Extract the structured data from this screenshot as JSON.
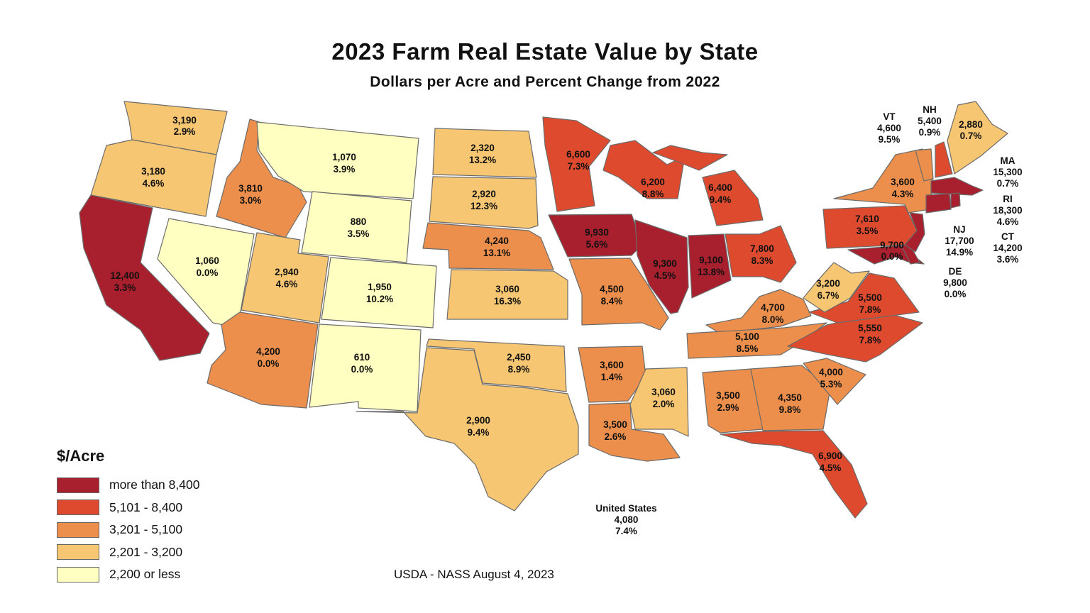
{
  "title": "2023 Farm Real Estate Value by State",
  "subtitle": "Dollars per Acre and Percent Change from 2022",
  "colors": {
    "c1": "#a81f2e",
    "c2": "#de4a2e",
    "c3": "#ec8f4c",
    "c4": "#f6c673",
    "c5": "#feffc0"
  },
  "legend": {
    "title": "$/Acre",
    "items": [
      {
        "color_key": "c1",
        "label": "more than 8,400"
      },
      {
        "color_key": "c2",
        "label": "5,101 - 8,400"
      },
      {
        "color_key": "c3",
        "label": "3,201 - 5,100"
      },
      {
        "color_key": "c4",
        "label": "2,201 - 3,200"
      },
      {
        "color_key": "c5",
        "label": "2,200 or less"
      }
    ]
  },
  "states": {
    "WA": {
      "value": "3,190",
      "change": "2.9%"
    },
    "OR": {
      "value": "3,180",
      "change": "4.6%"
    },
    "CA": {
      "value": "12,400",
      "change": "3.3%"
    },
    "ID": {
      "value": "3,810",
      "change": "3.0%"
    },
    "NV": {
      "value": "1,060",
      "change": "0.0%"
    },
    "MT": {
      "value": "1,070",
      "change": "3.9%"
    },
    "WY": {
      "value": "880",
      "change": "3.5%"
    },
    "UT": {
      "value": "2,940",
      "change": "4.6%"
    },
    "CO": {
      "value": "1,950",
      "change": "10.2%"
    },
    "AZ": {
      "value": "4,200",
      "change": "0.0%"
    },
    "NM": {
      "value": "610",
      "change": "0.0%"
    },
    "ND": {
      "value": "2,320",
      "change": "13.2%"
    },
    "SD": {
      "value": "2,920",
      "change": "12.3%"
    },
    "NE": {
      "value": "4,240",
      "change": "13.1%"
    },
    "KS": {
      "value": "3,060",
      "change": "16.3%"
    },
    "OK": {
      "value": "2,450",
      "change": "8.9%"
    },
    "TX": {
      "value": "2,900",
      "change": "9.4%"
    },
    "MN": {
      "value": "6,600",
      "change": "7.3%"
    },
    "IA": {
      "value": "9,930",
      "change": "5.6%"
    },
    "MO": {
      "value": "4,500",
      "change": "8.4%"
    },
    "AR": {
      "value": "3,600",
      "change": "1.4%"
    },
    "LA": {
      "value": "3,500",
      "change": "2.6%"
    },
    "WI": {
      "value": "6,200",
      "change": "8.8%"
    },
    "IL": {
      "value": "9,300",
      "change": "4.5%"
    },
    "MI": {
      "value": "6,400",
      "change": "9.4%"
    },
    "IN": {
      "value": "9,100",
      "change": "13.8%"
    },
    "OH": {
      "value": "7,800",
      "change": "8.3%"
    },
    "KY": {
      "value": "4,700",
      "change": "8.0%"
    },
    "TN": {
      "value": "5,100",
      "change": "8.5%"
    },
    "MS": {
      "value": "3,060",
      "change": "2.0%"
    },
    "AL": {
      "value": "3,500",
      "change": "2.9%"
    },
    "GA": {
      "value": "4,350",
      "change": "9.8%"
    },
    "FL": {
      "value": "6,900",
      "change": "4.5%"
    },
    "SC": {
      "value": "4,000",
      "change": "5.3%"
    },
    "NC": {
      "value": "5,550",
      "change": "7.8%"
    },
    "VA": {
      "value": "5,500",
      "change": "7.8%"
    },
    "WV": {
      "value": "3,200",
      "change": "6.7%"
    },
    "PA": {
      "value": "7,610",
      "change": "3.5%"
    },
    "NY": {
      "value": "3,600",
      "change": "4.3%"
    },
    "MD": {
      "value": "9,700",
      "change": "0.0%"
    },
    "ME": {
      "value": "2,880",
      "change": "0.7%"
    },
    "NJ": {
      "name": "NJ",
      "value": "17,700",
      "change": "14.9%"
    },
    "VT": {
      "name": "VT",
      "value": "4,600",
      "change": "9.5%"
    },
    "NH": {
      "name": "NH",
      "value": "5,400",
      "change": "0.9%"
    },
    "MA": {
      "name": "MA",
      "value": "15,300",
      "change": "0.7%"
    },
    "RI": {
      "name": "RI",
      "value": "18,300",
      "change": "4.6%"
    },
    "CT": {
      "name": "CT",
      "value": "14,200",
      "change": "3.6%"
    },
    "DE": {
      "name": "DE",
      "value": "9,800",
      "change": "0.0%"
    }
  },
  "us_total": {
    "name": "United States",
    "value": "4,080",
    "change": "7.4%"
  },
  "source": "USDA - NASS August 4, 2023"
}
